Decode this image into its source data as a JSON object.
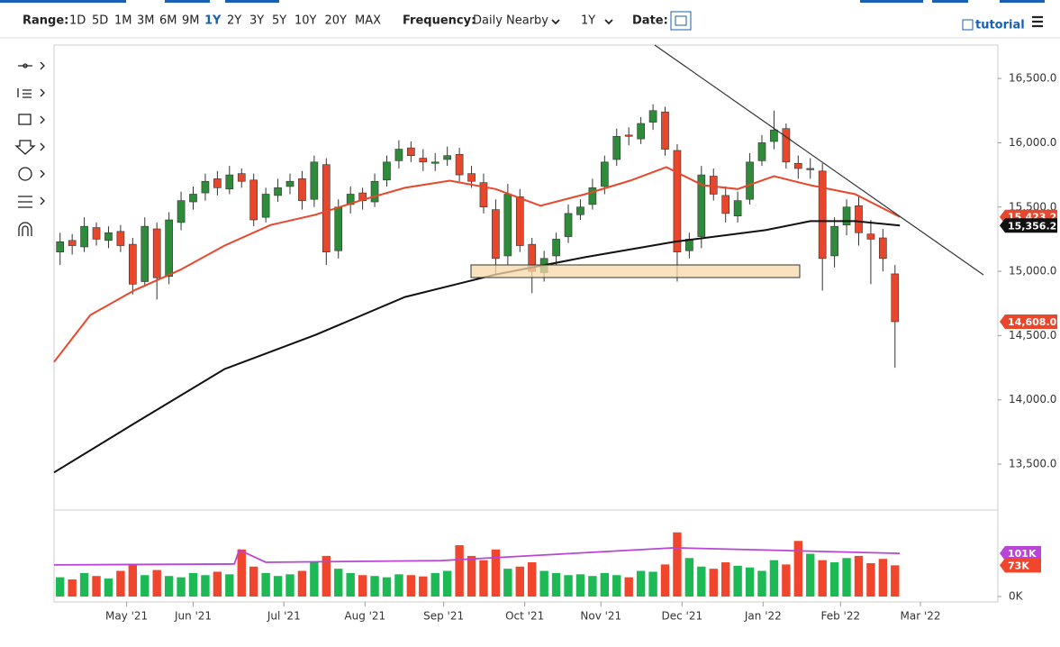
{
  "toolbar": {
    "range_label": "Range:",
    "ranges": [
      "1D",
      "5D",
      "1M",
      "3M",
      "6M",
      "9M",
      "1Y",
      "2Y",
      "3Y",
      "5Y",
      "10Y",
      "20Y",
      "MAX"
    ],
    "selected_range": 6,
    "frequency_label": "Frequency:",
    "frequency": "Daily Nearby",
    "period": "1Y",
    "date_label": "Date:",
    "tutorial": "tutorial"
  },
  "chart_data": [
    {
      "type": "candlestick",
      "up_color": "#2e8b3a",
      "down_color": "#e8472b",
      "xlim": [
        -0.5,
        77.5
      ],
      "xticks": [
        {
          "value": 5.5,
          "label": "May '21"
        },
        {
          "value": 11.0,
          "label": "Jun '21"
        },
        {
          "value": 18.5,
          "label": "Jul '21"
        },
        {
          "value": 25.2,
          "label": "Aug '21"
        },
        {
          "value": 31.7,
          "label": "Sep '21"
        },
        {
          "value": 38.4,
          "label": "Oct '21"
        },
        {
          "value": 44.7,
          "label": "Nov '21"
        },
        {
          "value": 51.4,
          "label": "Dec '21"
        },
        {
          "value": 58.1,
          "label": "Jan '22"
        },
        {
          "value": 64.5,
          "label": "Feb '22"
        },
        {
          "value": 71.1,
          "label": "Mar '22"
        }
      ],
      "ylim": [
        13150,
        16760
      ],
      "yticks": [
        {
          "value": 13500,
          "label": "13,500.0"
        },
        {
          "value": 14000,
          "label": "14,000.0"
        },
        {
          "value": 14500,
          "label": "14,500.0"
        },
        {
          "value": 15000,
          "label": "15,000.0"
        },
        {
          "value": 15500,
          "label": "15,500.0"
        },
        {
          "value": 16000,
          "label": "16,000.0"
        },
        {
          "value": 16500,
          "label": "16,500.0"
        }
      ],
      "open": [
        15150,
        15240,
        15190,
        15340,
        15240,
        15310,
        15210,
        14920,
        15330,
        14960,
        15380,
        15540,
        15610,
        15720,
        15640,
        15760,
        15710,
        15420,
        15590,
        15660,
        15720,
        15560,
        15830,
        15160,
        15520,
        15610,
        15540,
        15710,
        15860,
        15960,
        15880,
        15840,
        15870,
        15910,
        15760,
        15690,
        15480,
        15120,
        15580,
        15210,
        14990,
        15120,
        15270,
        15440,
        15520,
        15660,
        15870,
        16060,
        16030,
        16160,
        16240,
        15940,
        15160,
        15270,
        15740,
        15590,
        15430,
        15560,
        15860,
        16010,
        16110,
        15840,
        15790,
        15780,
        15120,
        15360,
        15510,
        15290,
        15260,
        14980
      ],
      "high": [
        15300,
        15290,
        15420,
        15380,
        15350,
        15360,
        15260,
        15420,
        15380,
        15460,
        15620,
        15660,
        15760,
        15780,
        15820,
        15800,
        15760,
        15650,
        15720,
        15760,
        15780,
        15900,
        15880,
        15560,
        15660,
        15650,
        15760,
        15900,
        16020,
        16010,
        15950,
        15920,
        15970,
        15960,
        15820,
        15760,
        15560,
        15680,
        15640,
        15260,
        15160,
        15300,
        15520,
        15560,
        15720,
        15900,
        16110,
        16120,
        16200,
        16300,
        16280,
        15990,
        15300,
        15820,
        15800,
        15660,
        15620,
        15920,
        16060,
        16250,
        16150,
        15900,
        15880,
        15840,
        15420,
        15560,
        15580,
        15400,
        15330,
        15050
      ],
      "low": [
        15050,
        15130,
        15150,
        15200,
        15180,
        15150,
        14820,
        14880,
        14780,
        14900,
        15320,
        15480,
        15550,
        15590,
        15600,
        15650,
        15350,
        15380,
        15540,
        15600,
        15480,
        15500,
        15050,
        15100,
        15450,
        15480,
        15500,
        15660,
        15800,
        15850,
        15780,
        15780,
        15820,
        15700,
        15650,
        15450,
        14980,
        15050,
        15150,
        14830,
        14920,
        15050,
        15220,
        15400,
        15480,
        15600,
        15820,
        15980,
        15990,
        16100,
        15900,
        14920,
        15100,
        15180,
        15550,
        15380,
        15380,
        15520,
        15820,
        15950,
        15800,
        15720,
        15720,
        14850,
        15030,
        15280,
        15200,
        14900,
        15000,
        14250
      ],
      "close": [
        15230,
        15200,
        15350,
        15250,
        15300,
        15200,
        14900,
        15350,
        14950,
        15400,
        15550,
        15600,
        15700,
        15650,
        15750,
        15700,
        15400,
        15600,
        15650,
        15700,
        15550,
        15850,
        15150,
        15500,
        15600,
        15550,
        15700,
        15850,
        15950,
        15900,
        15850,
        15850,
        15900,
        15750,
        15700,
        15500,
        15100,
        15600,
        15200,
        15000,
        15100,
        15250,
        15450,
        15500,
        15650,
        15850,
        16050,
        16050,
        16150,
        16250,
        15950,
        15150,
        15250,
        15750,
        15600,
        15450,
        15550,
        15850,
        16000,
        16100,
        15850,
        15800,
        15800,
        15100,
        15350,
        15500,
        15300,
        15250,
        15100,
        14608
      ],
      "lines": [
        {
          "color": "#e8472b",
          "x": [
            -0.5,
            2.5,
            6.2,
            9.9,
            13.6,
            17.4,
            21.1,
            24.8,
            28.5,
            32.2,
            36.0,
            39.7,
            43.4,
            47.1,
            50.1,
            53.1,
            56.0,
            59.0,
            62.0,
            65.7,
            69.4
          ],
          "values": [
            14295,
            14660,
            14855,
            15010,
            15200,
            15360,
            15440,
            15550,
            15650,
            15705,
            15640,
            15510,
            15600,
            15705,
            15810,
            15670,
            15640,
            15740,
            15670,
            15600,
            15423.2
          ]
        },
        {
          "color": "#111111",
          "x": [
            -0.5,
            6.2,
            13.6,
            21.1,
            28.5,
            36.0,
            43.4,
            50.8,
            58.3,
            62.0,
            65.7,
            69.4
          ],
          "values": [
            13435,
            13820,
            14240,
            14505,
            14800,
            14975,
            15110,
            15230,
            15320,
            15390,
            15390,
            15356.2
          ]
        }
      ],
      "markers": [
        {
          "value": 15423.2,
          "label": "15,423.2",
          "color": "#e8472b"
        },
        {
          "value": 15356.2,
          "label": "15,356.2",
          "color": "#111111"
        },
        {
          "value": 14608.0,
          "label": "14,608.0",
          "color": "#e8472b"
        }
      ]
    },
    {
      "type": "volume",
      "up_color": "#1db954",
      "down_color": "#f0462d",
      "xlim": [
        -0.5,
        77.5
      ],
      "ylim": [
        0,
        198
      ],
      "yticks": [
        {
          "value": 0,
          "label": "0K"
        }
      ],
      "values": [
        45,
        40,
        55,
        48,
        42,
        60,
        75,
        50,
        62,
        48,
        45,
        55,
        50,
        58,
        52,
        110,
        70,
        55,
        48,
        52,
        60,
        80,
        95,
        65,
        55,
        50,
        48,
        45,
        52,
        50,
        47,
        55,
        60,
        120,
        95,
        85,
        110,
        65,
        70,
        80,
        60,
        55,
        50,
        52,
        48,
        55,
        50,
        45,
        60,
        58,
        75,
        150,
        90,
        70,
        65,
        80,
        72,
        68,
        60,
        85,
        75,
        130,
        100,
        85,
        80,
        90,
        95,
        78,
        88,
        73
      ],
      "avg_line": {
        "color": "#b845d6",
        "x": [
          -0.5,
          14.4,
          14.8,
          17.0,
          31.5,
          50.8,
          69.4
        ],
        "values": [
          74,
          76,
          109,
          80,
          84,
          114,
          101
        ]
      },
      "markers": [
        {
          "value": 101,
          "label": "101K",
          "color": "#b845d6"
        },
        {
          "value": 73,
          "label": "73K",
          "color": "#f0462d"
        }
      ]
    }
  ]
}
